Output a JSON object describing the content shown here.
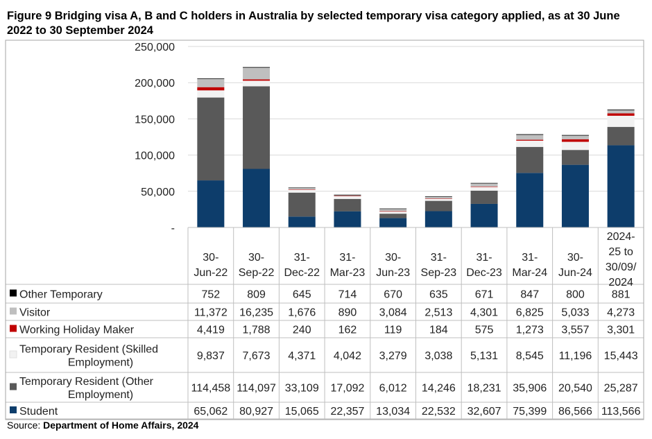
{
  "figure": {
    "title": "Figure 9 Bridging visa A, B and C holders in Australia by selected temporary visa category applied, as at 30 June 2022 to 30 September 2024",
    "source_label": "Source:",
    "source_text": "Department of Home Affairs, 2024"
  },
  "chart_data": {
    "type": "bar",
    "stacked": true,
    "title": "Figure 9 Bridging visa A, B and C holders in Australia by selected temporary visa category applied, as at 30 June 2022 to 30 September 2024",
    "xlabel": "",
    "ylabel": "",
    "ylim": [
      0,
      250000
    ],
    "yticks": [
      0,
      50000,
      100000,
      150000,
      200000,
      250000
    ],
    "ytick_labels": [
      "-",
      "50,000",
      "100,000",
      "150,000",
      "200,000",
      "250,000"
    ],
    "grid": true,
    "legend_position": "bottom-left (data table)",
    "categories": [
      [
        "30-",
        "Jun-22"
      ],
      [
        "30-",
        "Sep-22"
      ],
      [
        "31-",
        "Dec-22"
      ],
      [
        "31-",
        "Mar-23"
      ],
      [
        "30-",
        "Jun-23"
      ],
      [
        "31-",
        "Sep-23"
      ],
      [
        "31-",
        "Dec-23"
      ],
      [
        "31-",
        "Mar-24"
      ],
      [
        "30-",
        "Jun-24"
      ],
      [
        "2024-",
        "25 to",
        "30/09/",
        "2024"
      ]
    ],
    "series": [
      {
        "name": "Student",
        "label_lines": [
          "Student"
        ],
        "color": "#0d3d6b",
        "values": [
          65062,
          80927,
          15065,
          22357,
          13034,
          22532,
          32607,
          75399,
          86566,
          113566
        ],
        "display": [
          "65,062",
          "80,927",
          "15,065",
          "22,357",
          "13,034",
          "22,532",
          "32,607",
          "75,399",
          "86,566",
          "113,566"
        ]
      },
      {
        "name": "Temporary Resident (Other Employment)",
        "label_lines": [
          "Temporary Resident (Other",
          "Employment)"
        ],
        "color": "#595959",
        "values": [
          114458,
          114097,
          33109,
          17092,
          6012,
          14246,
          18231,
          35906,
          20540,
          25287
        ],
        "display": [
          "114,458",
          "114,097",
          "33,109",
          "17,092",
          "6,012",
          "14,246",
          "18,231",
          "35,906",
          "20,540",
          "25,287"
        ]
      },
      {
        "name": "Temporary Resident (Skilled Employment)",
        "label_lines": [
          "Temporary Resident (Skilled",
          "Employment)"
        ],
        "color": "#f2f2f2",
        "values": [
          9837,
          7673,
          4371,
          4042,
          3279,
          3038,
          5131,
          8545,
          11196,
          15443
        ],
        "display": [
          "9,837",
          "7,673",
          "4,371",
          "4,042",
          "3,279",
          "3,038",
          "5,131",
          "8,545",
          "11,196",
          "15,443"
        ]
      },
      {
        "name": "Working Holiday Maker",
        "label_lines": [
          "Working Holiday Maker"
        ],
        "color": "#c00000",
        "values": [
          4419,
          1788,
          240,
          162,
          119,
          184,
          575,
          1273,
          3557,
          3301
        ],
        "display": [
          "4,419",
          "1,788",
          "240",
          "162",
          "119",
          "184",
          "575",
          "1,273",
          "3,557",
          "3,301"
        ]
      },
      {
        "name": "Visitor",
        "label_lines": [
          "Visitor"
        ],
        "color": "#bfbfbf",
        "values": [
          11372,
          16235,
          1676,
          890,
          3084,
          2513,
          4301,
          6825,
          5033,
          4273
        ],
        "display": [
          "11,372",
          "16,235",
          "1,676",
          "890",
          "3,084",
          "2,513",
          "4,301",
          "6,825",
          "5,033",
          "4,273"
        ]
      },
      {
        "name": "Other Temporary",
        "label_lines": [
          "Other Temporary"
        ],
        "color": "#000000",
        "values": [
          752,
          809,
          645,
          714,
          670,
          635,
          671,
          847,
          800,
          881
        ],
        "display": [
          "752",
          "809",
          "645",
          "714",
          "670",
          "635",
          "671",
          "847",
          "800",
          "881"
        ]
      }
    ]
  }
}
